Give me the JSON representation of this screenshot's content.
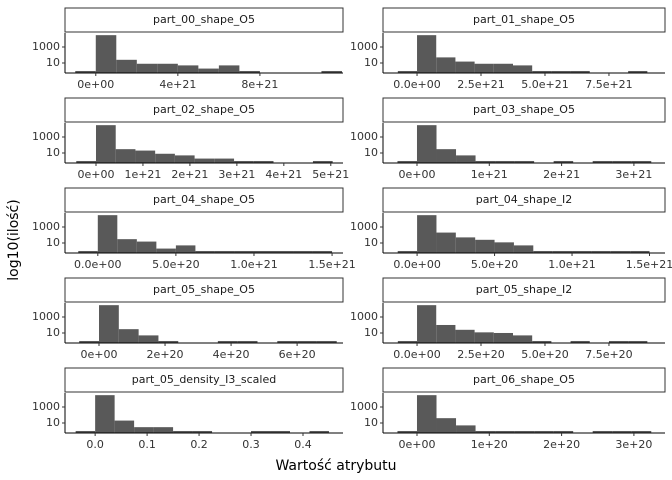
{
  "axis_labels": {
    "x": "Wartość atrybutu",
    "y": "log10(ilość)"
  },
  "chart_data": [
    {
      "type": "histogram",
      "title": "part_00_shape_O5",
      "color": "#595959",
      "log_y": true,
      "bins": [
        -1e+21,
        0,
        1e+21,
        2e+21,
        3e+21,
        4e+21,
        5e+21,
        6e+21,
        7e+21,
        8e+21,
        9e+21,
        1e+22,
        1.1e+22,
        1.2e+22
      ],
      "values": [
        1,
        30000,
        25,
        8,
        8,
        5,
        2,
        5,
        1,
        0,
        0,
        0,
        1
      ],
      "xlim": [
        -1.5e+21,
        1.205e+22
      ],
      "xticks": [
        {
          "value": 0,
          "label": "0e+00"
        },
        {
          "value": 4e+21,
          "label": "4e+21"
        },
        {
          "value": 8e+21,
          "label": "8e+21"
        }
      ],
      "ylim": [
        0.56,
        56000
      ],
      "yticks": [
        10,
        1000
      ]
    },
    {
      "type": "histogram",
      "title": "part_01_shape_O5",
      "color": "#595959",
      "log_y": true,
      "bins": [
        -7.5e+20,
        0,
        7.5e+20,
        1.5e+21,
        2.25e+21,
        3e+21,
        3.75e+21,
        4.5e+21,
        5.25e+21,
        6e+21,
        6.75e+21,
        7.5e+21,
        8.25e+21,
        9e+21
      ],
      "values": [
        1,
        30000,
        50,
        15,
        8,
        8,
        5,
        1,
        1,
        1,
        0,
        0,
        1
      ],
      "xlim": [
        -1.33e+21,
        9.69e+21
      ],
      "xticks": [
        {
          "value": 0,
          "label": "0.0e+00"
        },
        {
          "value": 2.5e+21,
          "label": "2.5e+21"
        },
        {
          "value": 5e+21,
          "label": "5.0e+21"
        },
        {
          "value": 7.5e+21,
          "label": "7.5e+21"
        }
      ],
      "ylim": [
        0.56,
        56000
      ],
      "yticks": [
        10,
        1000
      ]
    },
    {
      "type": "histogram",
      "title": "part_02_shape_O5",
      "color": "#595959",
      "log_y": true,
      "bins": [
        -4.2e+20,
        0,
        4.2e+20,
        8.4e+20,
        1.26e+21,
        1.68e+21,
        2.1e+21,
        2.52e+21,
        2.94e+21,
        3.36e+21,
        3.78e+21,
        4.2e+21,
        4.62e+21,
        5.04e+21
      ],
      "values": [
        1,
        30000,
        30,
        20,
        8,
        5,
        2,
        2,
        1,
        1,
        0,
        0,
        1
      ],
      "xlim": [
        -6.6e+20,
        5.26e+21
      ],
      "xticks": [
        {
          "value": 0,
          "label": "0e+00"
        },
        {
          "value": 1e+21,
          "label": "1e+21"
        },
        {
          "value": 2e+21,
          "label": "2e+21"
        },
        {
          "value": 3e+21,
          "label": "3e+21"
        },
        {
          "value": 4e+21,
          "label": "4e+21"
        },
        {
          "value": 5e+21,
          "label": "5e+21"
        }
      ],
      "ylim": [
        0.56,
        56000
      ],
      "yticks": [
        10,
        1000
      ]
    },
    {
      "type": "histogram",
      "title": "part_03_shape_O5",
      "color": "#595959",
      "log_y": true,
      "bins": [
        -2.7e+20,
        0,
        2.7e+20,
        5.4e+20,
        8.1e+20,
        1.08e+21,
        1.35e+21,
        1.62e+21,
        1.89e+21,
        2.16e+21,
        2.43e+21,
        2.7e+21,
        2.97e+21,
        3.24e+21
      ],
      "values": [
        1,
        30000,
        30,
        5,
        1,
        1,
        1,
        0,
        1,
        0,
        1,
        1,
        1
      ],
      "xlim": [
        -4.7e+20,
        3.43e+21
      ],
      "xticks": [
        {
          "value": 0,
          "label": "0e+00"
        },
        {
          "value": 1e+21,
          "label": "1e+21"
        },
        {
          "value": 2e+21,
          "label": "2e+21"
        },
        {
          "value": 3e+21,
          "label": "3e+21"
        }
      ],
      "ylim": [
        0.56,
        56000
      ],
      "yticks": [
        10,
        1000
      ]
    },
    {
      "type": "histogram",
      "title": "part_04_shape_O5",
      "color": "#595959",
      "log_y": true,
      "bins": [
        -1.25e+20,
        0,
        1.25e+20,
        2.5e+20,
        3.75e+20,
        5e+20,
        6.25e+20,
        7.5e+20,
        8.75e+20,
        1e+21,
        1.125e+21,
        1.25e+21,
        1.375e+21,
        1.5e+21
      ],
      "values": [
        1,
        30000,
        30,
        15,
        2,
        5,
        1,
        1,
        1,
        1,
        1,
        1,
        1
      ],
      "xlim": [
        -2.1e+20,
        1.57e+21
      ],
      "xticks": [
        {
          "value": 0,
          "label": "0.0e+00"
        },
        {
          "value": 5e+20,
          "label": "5.0e+20"
        },
        {
          "value": 1e+21,
          "label": "1.0e+21"
        },
        {
          "value": 1.5e+21,
          "label": "1.5e+21"
        }
      ],
      "ylim": [
        0.56,
        56000
      ],
      "yticks": [
        10,
        1000
      ]
    },
    {
      "type": "histogram",
      "title": "part_04_shape_I2",
      "color": "#595959",
      "log_y": true,
      "bins": [
        -1.25e+20,
        0,
        1.25e+20,
        2.5e+20,
        3.75e+20,
        5e+20,
        6.25e+20,
        7.5e+20,
        8.75e+20,
        1e+21,
        1.125e+21,
        1.25e+21,
        1.375e+21,
        1.5e+21
      ],
      "values": [
        1,
        30000,
        200,
        50,
        25,
        12,
        5,
        1,
        1,
        1,
        1,
        1,
        1
      ],
      "xlim": [
        -2.2e+20,
        1.6e+21
      ],
      "xticks": [
        {
          "value": 0,
          "label": "0.0e+00"
        },
        {
          "value": 5e+20,
          "label": "5.0e+20"
        },
        {
          "value": 1e+21,
          "label": "1.0e+21"
        },
        {
          "value": 1.5e+21,
          "label": "1.5e+21"
        }
      ],
      "ylim": [
        0.56,
        56000
      ],
      "yticks": [
        10,
        1000
      ]
    },
    {
      "type": "histogram",
      "title": "part_05_shape_O5",
      "color": "#595959",
      "log_y": true,
      "bins": [
        -6e+19,
        0,
        6e+19,
        1.2e+20,
        1.8e+20,
        2.4e+20,
        3e+20,
        3.6e+20,
        4.2e+20,
        4.8e+20,
        5.4e+20,
        6e+20,
        6.6e+20,
        7.2e+20
      ],
      "values": [
        1,
        30000,
        30,
        5,
        1,
        0,
        0,
        1,
        1,
        0,
        1,
        1,
        1
      ],
      "xlim": [
        -1.03e+20,
        7.39e+20
      ],
      "xticks": [
        {
          "value": 0,
          "label": "0e+00"
        },
        {
          "value": 2e+20,
          "label": "2e+20"
        },
        {
          "value": 4e+20,
          "label": "4e+20"
        },
        {
          "value": 6e+20,
          "label": "6e+20"
        }
      ],
      "ylim": [
        0.56,
        56000
      ],
      "yticks": [
        10,
        1000
      ]
    },
    {
      "type": "histogram",
      "title": "part_05_shape_I2",
      "color": "#595959",
      "log_y": true,
      "bins": [
        -7.5e+19,
        0,
        7.5e+19,
        1.5e+20,
        2.25e+20,
        3e+20,
        3.75e+20,
        4.5e+20,
        5.25e+20,
        6e+20,
        6.75e+20,
        7.5e+20,
        8.25e+20,
        9e+20
      ],
      "values": [
        1,
        30000,
        100,
        25,
        12,
        10,
        5,
        1,
        0,
        1,
        0,
        1,
        1
      ],
      "xlim": [
        -1.33e+20,
        9.69e+20
      ],
      "xticks": [
        {
          "value": 0,
          "label": "0.0e+00"
        },
        {
          "value": 2.5e+20,
          "label": "2.5e+20"
        },
        {
          "value": 5e+20,
          "label": "5.0e+20"
        },
        {
          "value": 7.5e+20,
          "label": "7.5e+20"
        }
      ],
      "ylim": [
        0.56,
        56000
      ],
      "yticks": [
        10,
        1000
      ]
    },
    {
      "type": "histogram",
      "title": "part_05_density_I3_scaled",
      "color": "#595959",
      "log_y": true,
      "bins": [
        -0.0375,
        0,
        0.0375,
        0.075,
        0.1125,
        0.15,
        0.1875,
        0.225,
        0.2625,
        0.3,
        0.3375,
        0.375,
        0.4125,
        0.45
      ],
      "values": [
        1,
        30000,
        20,
        3,
        3,
        1,
        1,
        0,
        0,
        1,
        1,
        0,
        1
      ],
      "xlim": [
        -0.058,
        0.477
      ],
      "xticks": [
        {
          "value": 0,
          "label": "0.0"
        },
        0.1,
        0.2,
        0.3,
        0.4
      ],
      "ylim": [
        0.56,
        56000
      ],
      "yticks": [
        10,
        1000
      ]
    },
    {
      "type": "histogram",
      "title": "part_06_shape_O5",
      "color": "#595959",
      "log_y": true,
      "bins": [
        -2.7e+19,
        0,
        2.7e+19,
        5.4e+19,
        8.1e+19,
        1.08e+20,
        1.35e+20,
        1.62e+20,
        1.89e+20,
        2.16e+20,
        2.43e+20,
        2.7e+20,
        2.97e+20,
        3.24e+20
      ],
      "values": [
        1,
        30000,
        40,
        5,
        1,
        1,
        1,
        1,
        1,
        0,
        1,
        1,
        1
      ],
      "xlim": [
        -4.7e+19,
        3.43e+20
      ],
      "xticks": [
        {
          "value": 0,
          "label": "0e+00"
        },
        {
          "value": 1e+20,
          "label": "1e+20"
        },
        {
          "value": 2e+20,
          "label": "2e+20"
        },
        {
          "value": 3e+20,
          "label": "3e+20"
        }
      ],
      "ylim": [
        0.56,
        56000
      ],
      "yticks": [
        10,
        1000
      ]
    }
  ]
}
